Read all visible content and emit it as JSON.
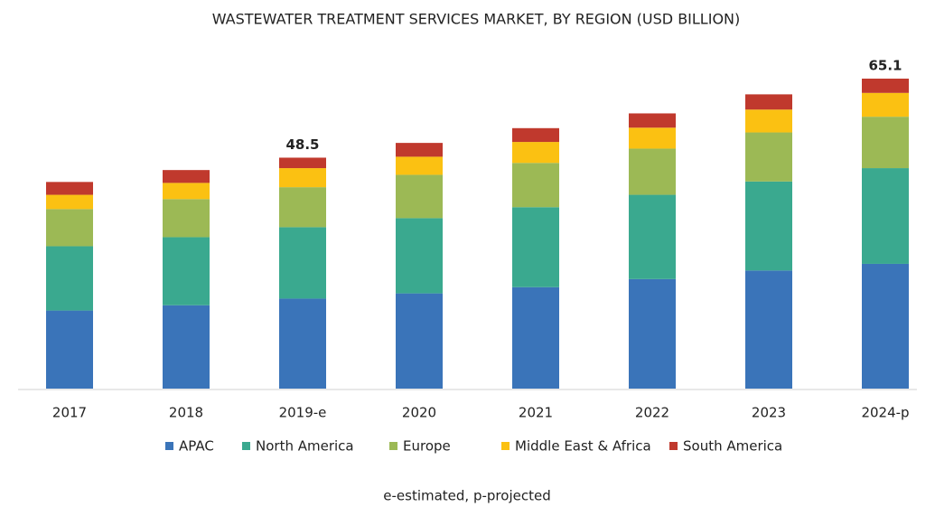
{
  "chart_data": {
    "type": "stacked_bar",
    "title": "WASTEWATER TREATMENT SERVICES MARKET, BY REGION (USD BILLION)",
    "categories": [
      "2017",
      "2018",
      "2019-e",
      "2020",
      "2021",
      "2022",
      "2023",
      "2024-p"
    ],
    "series": [
      {
        "name": "APAC",
        "color": "#3a74b9",
        "values": [
          16.4,
          17.5,
          18.9,
          20.0,
          21.3,
          23.0,
          24.8,
          26.2
        ]
      },
      {
        "name": "North America",
        "color": "#3aa98f",
        "values": [
          13.5,
          14.3,
          15.0,
          15.8,
          16.8,
          17.7,
          18.7,
          20.1
        ]
      },
      {
        "name": "Europe",
        "color": "#9cb955",
        "values": [
          7.8,
          8.0,
          8.4,
          9.1,
          9.3,
          9.7,
          10.3,
          10.8
        ]
      },
      {
        "name": "Middle East & Africa",
        "color": "#fbc112",
        "values": [
          3.0,
          3.4,
          4.0,
          3.8,
          4.4,
          4.4,
          4.8,
          5.0
        ]
      },
      {
        "name": "South America",
        "color": "#c0392d",
        "values": [
          2.7,
          2.7,
          2.2,
          2.9,
          2.9,
          3.0,
          3.2,
          3.0
        ]
      }
    ],
    "totals": [
      null,
      null,
      48.5,
      null,
      null,
      null,
      null,
      65.1
    ],
    "footnote": "e-estimated, p-projected",
    "legend": "bottom"
  }
}
